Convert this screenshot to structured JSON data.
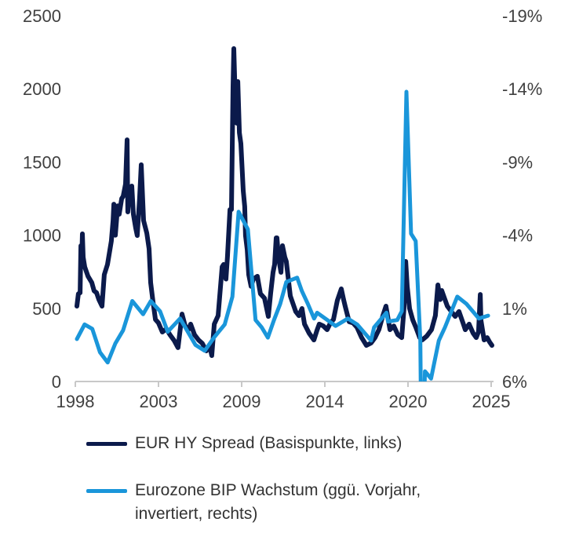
{
  "chart_data": {
    "type": "line",
    "title": "",
    "x_tick_labels": [
      "1998",
      "2003",
      "2009",
      "2014",
      "2020",
      "2025"
    ],
    "x_range": [
      1998,
      2025
    ],
    "y_left": {
      "range": [
        0,
        2500
      ],
      "ticks": [
        "0",
        "500",
        "1000",
        "1500",
        "2000",
        "2500"
      ]
    },
    "y_right": {
      "range": [
        6,
        -19
      ],
      "inverted": true,
      "ticks": [
        "6%",
        "1%",
        "-4%",
        "-9%",
        "-14%",
        "-19%"
      ]
    },
    "grid": false,
    "legend_position": "bottom",
    "series": [
      {
        "name": "EUR HY Spread (Basispunkte, links)",
        "axis": "left",
        "color": "#0b1a4b",
        "points": [
          [
            1998.1,
            515
          ],
          [
            1998.2,
            600
          ],
          [
            1998.31,
            606
          ],
          [
            1998.36,
            928
          ],
          [
            1998.41,
            800
          ],
          [
            1998.46,
            1009
          ],
          [
            1998.51,
            850
          ],
          [
            1998.61,
            783
          ],
          [
            1998.82,
            720
          ],
          [
            1999.07,
            676
          ],
          [
            1999.22,
            620
          ],
          [
            1999.38,
            606
          ],
          [
            1999.53,
            560
          ],
          [
            1999.73,
            515
          ],
          [
            1999.88,
            730
          ],
          [
            2000.09,
            800
          ],
          [
            2000.34,
            960
          ],
          [
            2000.45,
            1100
          ],
          [
            2000.5,
            1212
          ],
          [
            2000.6,
            1000
          ],
          [
            2000.75,
            1200
          ],
          [
            2000.85,
            1143
          ],
          [
            2001.01,
            1250
          ],
          [
            2001.11,
            1266
          ],
          [
            2001.26,
            1350
          ],
          [
            2001.36,
            1652
          ],
          [
            2001.41,
            1159
          ],
          [
            2001.52,
            1320
          ],
          [
            2001.67,
            1336
          ],
          [
            2001.77,
            1143
          ],
          [
            2001.92,
            1050
          ],
          [
            2002.02,
            998
          ],
          [
            2002.17,
            1250
          ],
          [
            2002.28,
            1481
          ],
          [
            2002.43,
            1100
          ],
          [
            2002.64,
            1014
          ],
          [
            2002.79,
            907
          ],
          [
            2002.89,
            676
          ],
          [
            2003.04,
            550
          ],
          [
            2003.2,
            424
          ],
          [
            2003.4,
            400
          ],
          [
            2003.65,
            338
          ],
          [
            2003.91,
            360
          ],
          [
            2004.16,
            317
          ],
          [
            2004.42,
            280
          ],
          [
            2004.67,
            231
          ],
          [
            2004.93,
            461
          ],
          [
            2005.13,
            380
          ],
          [
            2005.34,
            354
          ],
          [
            2005.49,
            392
          ],
          [
            2005.74,
            320
          ],
          [
            2006.0,
            284
          ],
          [
            2006.25,
            260
          ],
          [
            2006.51,
            209
          ],
          [
            2006.71,
            250
          ],
          [
            2006.86,
            177
          ],
          [
            2007.02,
            392
          ],
          [
            2007.27,
            450
          ],
          [
            2007.53,
            783
          ],
          [
            2007.63,
            800
          ],
          [
            2007.78,
            700
          ],
          [
            2007.88,
            853
          ],
          [
            2008.04,
            1175
          ],
          [
            2008.14,
            1175
          ],
          [
            2008.24,
            2017
          ],
          [
            2008.29,
            2275
          ],
          [
            2008.39,
            1900
          ],
          [
            2008.49,
            1765
          ],
          [
            2008.55,
            2050
          ],
          [
            2008.65,
            1700
          ],
          [
            2008.75,
            1626
          ],
          [
            2008.9,
            1304
          ],
          [
            2009.0,
            1196
          ],
          [
            2009.05,
            998
          ],
          [
            2009.16,
            900
          ],
          [
            2009.26,
            730
          ],
          [
            2009.41,
            650
          ],
          [
            2009.56,
            700
          ],
          [
            2009.82,
            719
          ],
          [
            2010.02,
            600
          ],
          [
            2010.28,
            569
          ],
          [
            2010.53,
            445
          ],
          [
            2010.68,
            600
          ],
          [
            2010.84,
            746
          ],
          [
            2010.94,
            800
          ],
          [
            2011.04,
            982
          ],
          [
            2011.09,
            982
          ],
          [
            2011.19,
            850
          ],
          [
            2011.35,
            746
          ],
          [
            2011.45,
            928
          ],
          [
            2011.6,
            850
          ],
          [
            2011.7,
            821
          ],
          [
            2011.96,
            585
          ],
          [
            2012.31,
            478
          ],
          [
            2012.52,
            450
          ],
          [
            2012.72,
            499
          ],
          [
            2012.88,
            392
          ],
          [
            2013.18,
            330
          ],
          [
            2013.49,
            284
          ],
          [
            2013.69,
            350
          ],
          [
            2013.84,
            392
          ],
          [
            2014.1,
            380
          ],
          [
            2014.35,
            354
          ],
          [
            2014.56,
            400
          ],
          [
            2014.76,
            424
          ],
          [
            2015.01,
            553
          ],
          [
            2015.27,
            633
          ],
          [
            2015.42,
            560
          ],
          [
            2015.52,
            515
          ],
          [
            2015.78,
            408
          ],
          [
            2016.03,
            400
          ],
          [
            2016.29,
            370
          ],
          [
            2016.59,
            300
          ],
          [
            2016.9,
            247
          ],
          [
            2017.2,
            263
          ],
          [
            2017.46,
            300
          ],
          [
            2017.71,
            354
          ],
          [
            2017.97,
            450
          ],
          [
            2018.17,
            515
          ],
          [
            2018.43,
            354
          ],
          [
            2018.68,
            380
          ],
          [
            2018.94,
            320
          ],
          [
            2019.19,
            300
          ],
          [
            2019.34,
            500
          ],
          [
            2019.45,
            821
          ],
          [
            2019.55,
            650
          ],
          [
            2019.7,
            499
          ],
          [
            2019.91,
            420
          ],
          [
            2020.11,
            370
          ],
          [
            2020.36,
            300
          ],
          [
            2020.52,
            284
          ],
          [
            2020.82,
            310
          ],
          [
            2021.13,
            354
          ],
          [
            2021.38,
            450
          ],
          [
            2021.54,
            660
          ],
          [
            2021.69,
            560
          ],
          [
            2021.79,
            622
          ],
          [
            2022.0,
            560
          ],
          [
            2022.15,
            515
          ],
          [
            2022.4,
            480
          ],
          [
            2022.66,
            445
          ],
          [
            2022.91,
            478
          ],
          [
            2023.17,
            400
          ],
          [
            2023.32,
            354
          ],
          [
            2023.57,
            392
          ],
          [
            2023.83,
            330
          ],
          [
            2024.03,
            300
          ],
          [
            2024.18,
            340
          ],
          [
            2024.29,
            595
          ],
          [
            2024.34,
            418
          ],
          [
            2024.54,
            284
          ],
          [
            2024.74,
            300
          ],
          [
            2024.9,
            270
          ],
          [
            2025.05,
            247
          ]
        ]
      },
      {
        "name": "Eurozone BIP Wachstum (ggü. Vorjahr, invertiert, rechts)",
        "axis": "right",
        "color": "#1a96da",
        "points": [
          [
            1998.1,
            3.1
          ],
          [
            1998.6,
            2.1
          ],
          [
            1999.1,
            2.4
          ],
          [
            1999.6,
            4.0
          ],
          [
            2000.1,
            4.7
          ],
          [
            2000.6,
            3.4
          ],
          [
            2001.1,
            2.5
          ],
          [
            2001.7,
            0.5
          ],
          [
            2002.4,
            1.4
          ],
          [
            2002.9,
            0.5
          ],
          [
            2003.5,
            1.2
          ],
          [
            2004.0,
            2.6
          ],
          [
            2004.8,
            1.7
          ],
          [
            2005.8,
            3.5
          ],
          [
            2006.4,
            3.9
          ],
          [
            2007.0,
            3.0
          ],
          [
            2007.7,
            2.1
          ],
          [
            2008.2,
            0.2
          ],
          [
            2008.6,
            -5.6
          ],
          [
            2009.2,
            -4.4
          ],
          [
            2009.7,
            1.8
          ],
          [
            2010.1,
            2.3
          ],
          [
            2010.5,
            3.0
          ],
          [
            2010.9,
            1.8
          ],
          [
            2011.3,
            0.7
          ],
          [
            2011.7,
            -0.8
          ],
          [
            2012.4,
            -1.1
          ],
          [
            2012.7,
            -0.2
          ],
          [
            2013.1,
            0.7
          ],
          [
            2013.5,
            1.7
          ],
          [
            2013.7,
            1.3
          ],
          [
            2014.9,
            2.2
          ],
          [
            2015.7,
            1.7
          ],
          [
            2016.3,
            2.1
          ],
          [
            2017.2,
            3.2
          ],
          [
            2017.4,
            2.3
          ],
          [
            2018.2,
            1.3
          ],
          [
            2018.3,
            1.9
          ],
          [
            2018.9,
            1.8
          ],
          [
            2019.2,
            1.2
          ],
          [
            2019.5,
            -13.8
          ],
          [
            2019.8,
            -4.1
          ],
          [
            2020.1,
            -3.6
          ],
          [
            2020.4,
            3.2
          ],
          [
            2020.5,
            14.0
          ],
          [
            2020.7,
            5.3
          ],
          [
            2021.1,
            5.8
          ],
          [
            2021.6,
            3.2
          ],
          [
            2022.0,
            2.3
          ],
          [
            2022.8,
            0.2
          ],
          [
            2023.4,
            0.7
          ],
          [
            2024.2,
            1.7
          ],
          [
            2024.8,
            1.5
          ]
        ]
      }
    ]
  }
}
